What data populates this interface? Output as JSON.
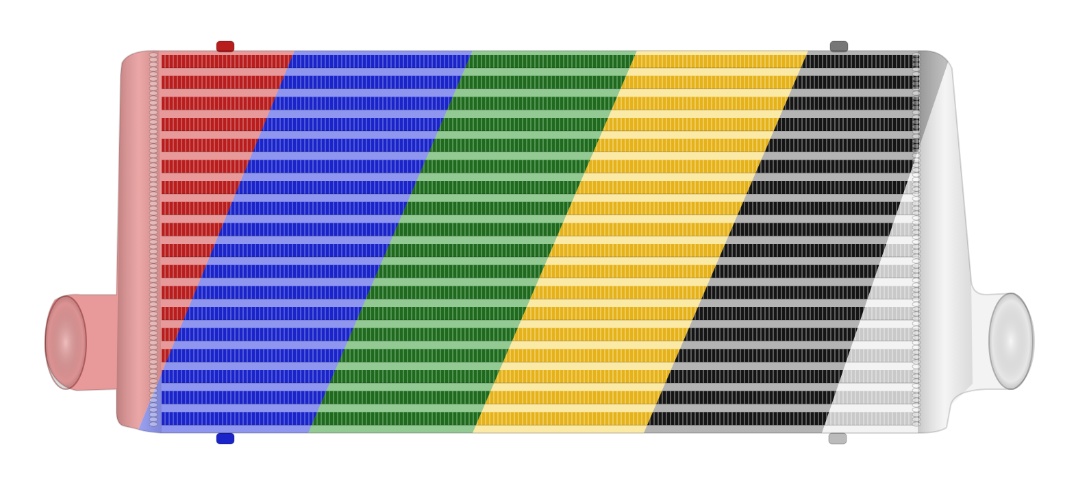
{
  "product": {
    "kind": "intercooler",
    "subject_icon": "intercooler-icon"
  },
  "color_bands": [
    {
      "name": "red",
      "core": "#b81e1e",
      "light": "#e89a9a"
    },
    {
      "name": "blue",
      "core": "#1a24c8",
      "light": "#8f96f0"
    },
    {
      "name": "green",
      "core": "#1f6a1f",
      "light": "#93c993"
    },
    {
      "name": "yellow",
      "core": "#e6b21c",
      "light": "#fbe9a6"
    },
    {
      "name": "black",
      "core": "#151515",
      "light": "#b4b4b4"
    },
    {
      "name": "silver",
      "core": "#c9c9c9",
      "light": "#f3f3f3"
    }
  ],
  "background": "#ffffff"
}
